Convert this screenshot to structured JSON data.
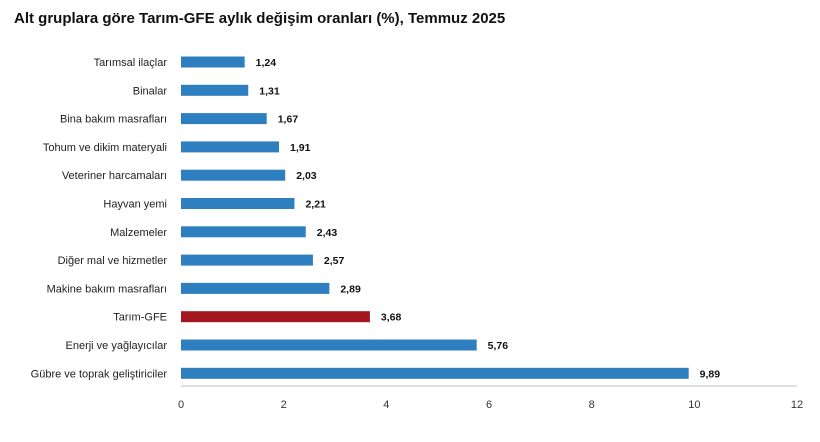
{
  "chart_data": {
    "type": "bar",
    "orientation": "horizontal",
    "title": "Alt gruplara göre Tarım-GFE aylık değişim oranları (%), Temmuz 2025",
    "categories": [
      "Tarımsal ilaçlar",
      "Binalar",
      "Bina bakım masrafları",
      "Tohum ve dikim materyali",
      "Veteriner harcamaları",
      "Hayvan yemi",
      "Malzemeler",
      "Diğer mal ve hizmetler",
      "Makine bakım masrafları",
      "Tarım-GFE",
      "Enerji  ve yağlayıcılar",
      "Gübre ve toprak geliştiriciler"
    ],
    "values": [
      1.24,
      1.31,
      1.67,
      1.91,
      2.03,
      2.21,
      2.43,
      2.57,
      2.89,
      3.68,
      5.76,
      9.89
    ],
    "value_labels": [
      "1,24",
      "1,31",
      "1,67",
      "1,91",
      "2,03",
      "2,21",
      "2,43",
      "2,57",
      "2,89",
      "3,68",
      "5,76",
      "9,89"
    ],
    "highlight_index": 9,
    "xlim": [
      0,
      12
    ],
    "x_ticks": [
      0,
      2,
      4,
      6,
      8,
      10,
      12
    ],
    "xlabel": "",
    "ylabel": "",
    "grid": false,
    "legend": "none",
    "colors": {
      "bar": "#2e7fbf",
      "highlight": "#a3171f",
      "axis": "#bfbfbf"
    }
  }
}
